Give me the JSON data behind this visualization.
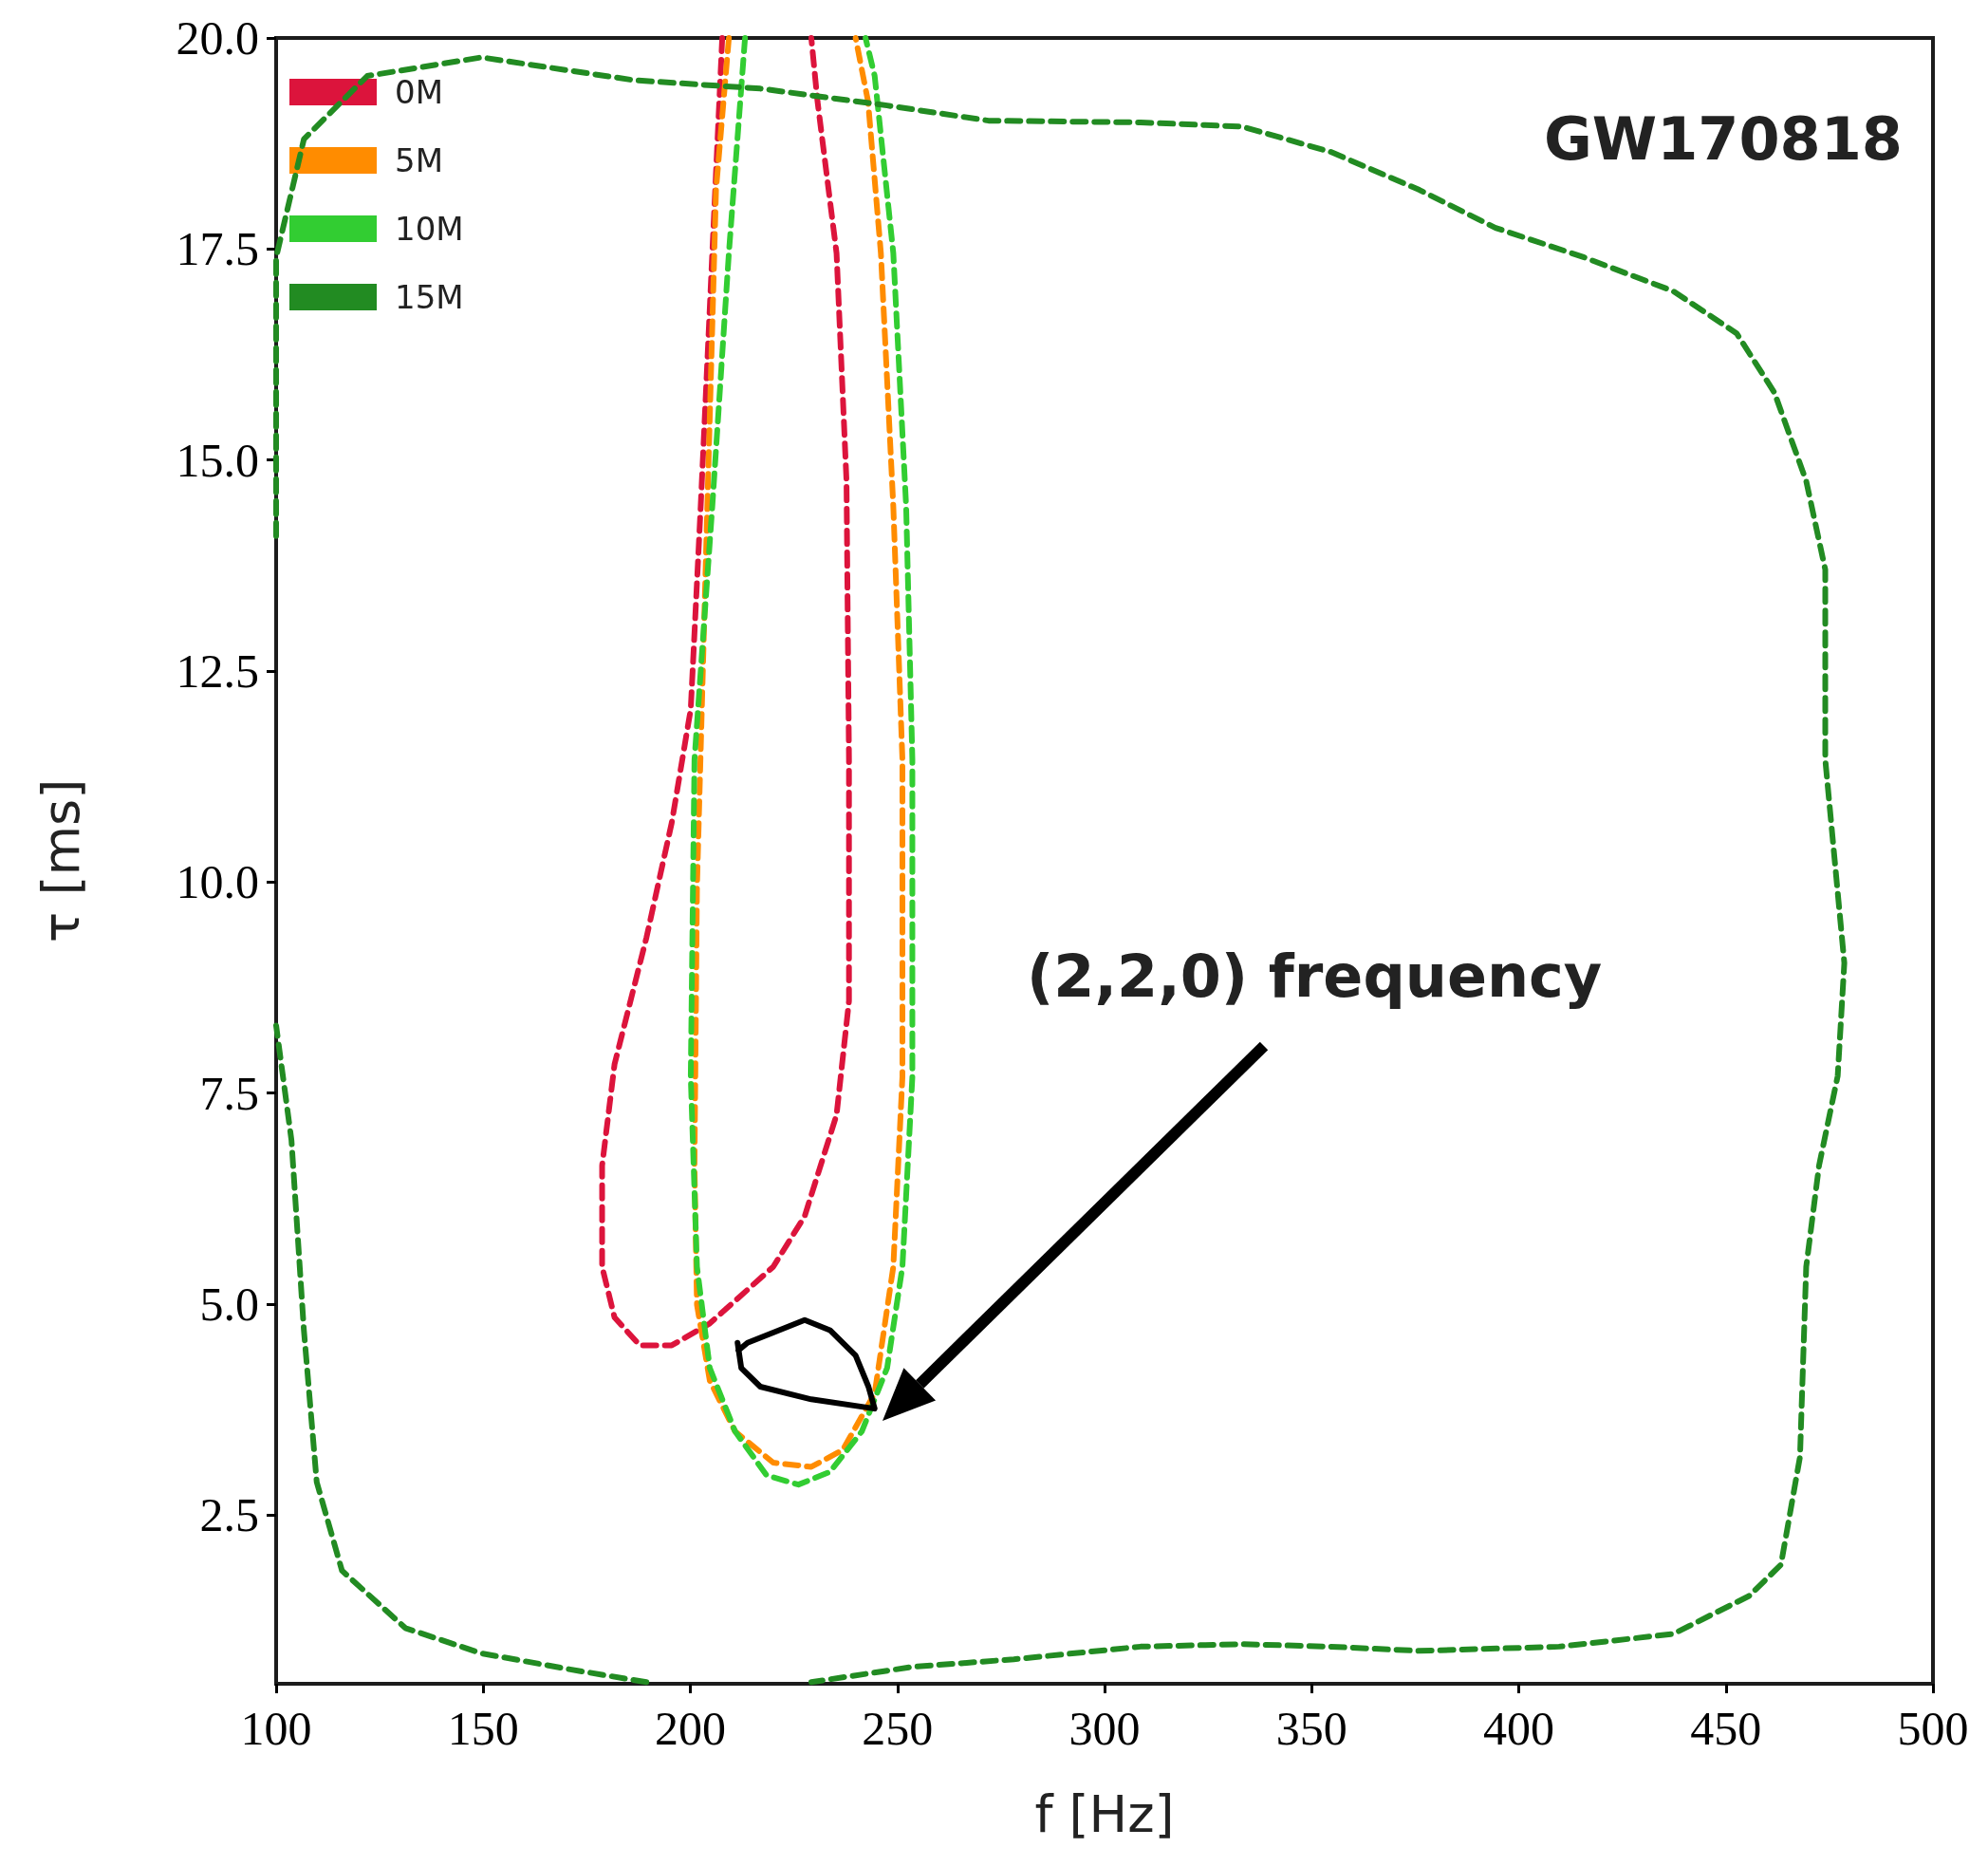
{
  "chart_data": {
    "type": "line",
    "xlabel": "f [Hz]",
    "ylabel": "τ [ms]",
    "xlim": [
      100,
      500
    ],
    "xticks": [
      100,
      150,
      200,
      250,
      300,
      350,
      400,
      450,
      500
    ],
    "ylim": [
      0.5,
      20
    ],
    "yticks": [
      {
        "value": 2.5,
        "label": "2.5"
      },
      {
        "value": 5,
        "label": "5.0"
      },
      {
        "value": 7.5,
        "label": "7.5"
      },
      {
        "value": 10,
        "label": "10.0"
      },
      {
        "value": 12.5,
        "label": "12.5"
      },
      {
        "value": 15,
        "label": "15.0"
      },
      {
        "value": 17.5,
        "label": "17.5"
      },
      {
        "value": 20,
        "label": "20.0"
      }
    ],
    "grid": false,
    "legend": "top left",
    "marker": "none",
    "line_style": "dashed",
    "annotations": [
      "GW170818",
      "(2,2,0) frequency"
    ],
    "series": [
      {
        "name": "0M",
        "color": "#dc143c",
        "x": [
          207.7,
          205.3,
          202.5,
          200.1,
          195.5,
          189.4,
          181.7,
          178.7,
          178.7,
          181.7,
          187.8,
          195.5,
          204.7,
          220.0,
          227.6,
          235.3,
          238.3,
          238.3,
          237.7,
          235.3,
          230.7,
          229.2
        ],
        "values": [
          20,
          17.45,
          14.45,
          12.05,
          10.7,
          9.34,
          7.84,
          6.64,
          5.44,
          4.84,
          4.51,
          4.51,
          4.77,
          5.44,
          6.04,
          7.24,
          8.59,
          11.45,
          14.75,
          17.45,
          19.25,
          20
        ]
      },
      {
        "name": "5M",
        "color": "#ff8c00",
        "x": [
          209.3,
          206.2,
          204.1,
          201.6,
          201.0,
          201.6,
          204.7,
          210.8,
          220.0,
          229.2,
          236.8,
          244.5,
          249.0,
          251.2,
          251.2,
          249.0,
          246.0,
          242.9,
          239.9
        ],
        "values": [
          20,
          18.2,
          14.45,
          9.94,
          6.64,
          4.99,
          4.09,
          3.49,
          3.12,
          3.07,
          3.27,
          3.94,
          5.44,
          7.69,
          11.45,
          14.45,
          17.45,
          19.25,
          20
        ]
      },
      {
        "name": "10M",
        "color": "#32cd32",
        "x": [
          213.2,
          209.3,
          205.3,
          201.0,
          200.1,
          201.6,
          204.7,
          210.8,
          218.4,
          226.1,
          233.7,
          241.4,
          247.5,
          251.2,
          253.6,
          253.6,
          252.1,
          249.0,
          244.5,
          242.3
        ],
        "values": [
          20,
          17.45,
          14.45,
          11.45,
          7.69,
          5.44,
          4.24,
          3.49,
          2.97,
          2.86,
          3.01,
          3.49,
          4.24,
          5.44,
          7.69,
          11.45,
          14.45,
          17.45,
          19.55,
          20
        ]
      },
      {
        "name": "15M",
        "color": "#228b22",
        "x": [
          100,
          100,
          106.7,
          122.0,
          149.6,
          186.3,
          216.9,
          247.5,
          272.0,
          308.7,
          333.2,
          354.6,
          376.0,
          394.4,
          415.8,
          437.3,
          452.6,
          461.7,
          469.4,
          474.0,
          474.0,
          478.6,
          477.0,
          472.5,
          469.4,
          467.9,
          463.3,
          455.6,
          437.3,
          409.7,
          376.0,
          354.6,
          333.2,
          308.7,
          278.1,
          253.6,
          229.2
        ],
        "values": [
          14.1,
          17.4,
          18.8,
          19.55,
          19.77,
          19.5,
          19.4,
          19.2,
          19.02,
          19.0,
          18.95,
          18.65,
          18.2,
          17.75,
          17.4,
          17.0,
          16.5,
          15.8,
          14.75,
          13.7,
          11.45,
          9.04,
          7.7,
          6.64,
          5.44,
          3.19,
          1.91,
          1.54,
          1.09,
          0.94,
          0.89,
          0.94,
          0.97,
          0.94,
          0.79,
          0.7,
          0.52
        ]
      },
      {
        "color": "#000000",
        "line_style": "solid",
        "x": [
          211.4,
          212.3,
          216.9,
          229.2,
          244.5,
          243.0,
          239.9,
          233.7,
          227.6,
          220.0,
          213.8,
          211.6
        ],
        "values": [
          4.54,
          4.24,
          4.02,
          3.87,
          3.76,
          4.02,
          4.39,
          4.69,
          4.81,
          4.66,
          4.54,
          4.45
        ]
      },
      {
        "color": "#228b22",
        "x": [
          189.4,
          171.0,
          149.6,
          131.2,
          115.9,
          109.8,
          106.7,
          103.7,
          100
        ],
        "values": [
          0.52,
          0.67,
          0.86,
          1.16,
          1.84,
          2.89,
          4.69,
          6.94,
          8.3
        ]
      }
    ]
  }
}
